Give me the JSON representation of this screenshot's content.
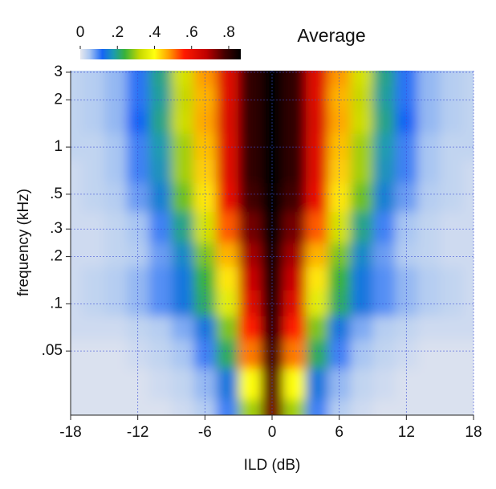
{
  "chart_data": {
    "type": "heatmap",
    "title": "Average",
    "xlabel": "ILD (dB)",
    "ylabel": "frequency (kHz)",
    "x": [
      -18,
      -16,
      -14,
      -12,
      -10,
      -8,
      -6,
      -4,
      -2,
      0,
      2,
      4,
      6,
      8,
      10,
      12,
      14,
      16,
      18
    ],
    "y": [
      0.02,
      0.03,
      0.05,
      0.07,
      0.1,
      0.15,
      0.2,
      0.3,
      0.5,
      0.7,
      1,
      1.5,
      2,
      3
    ],
    "values": [
      [
        0.01,
        0.01,
        0.01,
        0.01,
        0.01,
        0.02,
        0.04,
        0.1,
        0.3,
        0.74,
        0.3,
        0.1,
        0.04,
        0.02,
        0.01,
        0.01,
        0.01,
        0.01,
        0.01
      ],
      [
        0.01,
        0.01,
        0.01,
        0.01,
        0.02,
        0.03,
        0.06,
        0.14,
        0.4,
        0.76,
        0.4,
        0.14,
        0.06,
        0.03,
        0.02,
        0.01,
        0.01,
        0.01,
        0.01
      ],
      [
        0.01,
        0.01,
        0.01,
        0.02,
        0.03,
        0.05,
        0.1,
        0.22,
        0.5,
        0.78,
        0.5,
        0.22,
        0.1,
        0.05,
        0.03,
        0.02,
        0.01,
        0.01,
        0.01
      ],
      [
        0.02,
        0.02,
        0.02,
        0.03,
        0.04,
        0.07,
        0.14,
        0.28,
        0.56,
        0.8,
        0.56,
        0.28,
        0.14,
        0.07,
        0.04,
        0.03,
        0.02,
        0.02,
        0.02
      ],
      [
        0.02,
        0.03,
        0.04,
        0.06,
        0.09,
        0.14,
        0.22,
        0.36,
        0.62,
        0.82,
        0.62,
        0.36,
        0.22,
        0.14,
        0.09,
        0.06,
        0.04,
        0.03,
        0.02
      ],
      [
        0.02,
        0.03,
        0.04,
        0.06,
        0.09,
        0.14,
        0.24,
        0.42,
        0.66,
        0.84,
        0.66,
        0.42,
        0.24,
        0.14,
        0.09,
        0.06,
        0.04,
        0.03,
        0.02
      ],
      [
        0.02,
        0.02,
        0.03,
        0.04,
        0.08,
        0.16,
        0.28,
        0.46,
        0.7,
        0.85,
        0.7,
        0.46,
        0.28,
        0.16,
        0.08,
        0.04,
        0.03,
        0.02,
        0.02
      ],
      [
        0.02,
        0.02,
        0.03,
        0.05,
        0.1,
        0.2,
        0.34,
        0.52,
        0.74,
        0.86,
        0.74,
        0.52,
        0.34,
        0.2,
        0.1,
        0.05,
        0.03,
        0.02,
        0.02
      ],
      [
        0.02,
        0.03,
        0.04,
        0.08,
        0.15,
        0.27,
        0.42,
        0.6,
        0.78,
        0.86,
        0.78,
        0.6,
        0.42,
        0.27,
        0.15,
        0.08,
        0.04,
        0.03,
        0.02
      ],
      [
        0.02,
        0.03,
        0.05,
        0.1,
        0.17,
        0.3,
        0.44,
        0.62,
        0.8,
        0.86,
        0.8,
        0.62,
        0.44,
        0.3,
        0.17,
        0.1,
        0.05,
        0.03,
        0.02
      ],
      [
        0.03,
        0.03,
        0.05,
        0.1,
        0.18,
        0.3,
        0.45,
        0.62,
        0.8,
        0.86,
        0.8,
        0.62,
        0.45,
        0.3,
        0.18,
        0.1,
        0.05,
        0.03,
        0.03
      ],
      [
        0.03,
        0.04,
        0.06,
        0.12,
        0.2,
        0.33,
        0.47,
        0.63,
        0.8,
        0.86,
        0.8,
        0.63,
        0.47,
        0.33,
        0.2,
        0.12,
        0.06,
        0.04,
        0.03
      ],
      [
        0.03,
        0.04,
        0.06,
        0.11,
        0.19,
        0.32,
        0.46,
        0.62,
        0.8,
        0.86,
        0.8,
        0.62,
        0.46,
        0.32,
        0.19,
        0.11,
        0.06,
        0.04,
        0.03
      ],
      [
        0.03,
        0.04,
        0.06,
        0.11,
        0.2,
        0.34,
        0.48,
        0.62,
        0.8,
        0.86,
        0.8,
        0.62,
        0.48,
        0.34,
        0.2,
        0.11,
        0.06,
        0.04,
        0.03
      ]
    ],
    "xlim": [
      -18,
      18
    ],
    "xticks": [
      -18,
      -12,
      -6,
      0,
      6,
      12,
      18
    ],
    "ylim": [
      0.0195,
      3.07
    ],
    "ylog": true,
    "yticks": [
      {
        "value": 0.05,
        "label": ".05"
      },
      {
        "value": 0.1,
        "label": ".1"
      },
      {
        "value": 0.2,
        "label": ".2"
      },
      {
        "value": 0.3,
        "label": ".3"
      },
      {
        "value": 0.5,
        "label": ".5"
      },
      1,
      2,
      3
    ],
    "grid": true,
    "clim": [
      0,
      0.865
    ],
    "cticks": [
      0,
      {
        "value": 0.2,
        "label": ".2"
      },
      {
        "value": 0.4,
        "label": ".4"
      },
      {
        "value": 0.6,
        "label": ".6"
      },
      {
        "value": 0.8,
        "label": ".8"
      }
    ],
    "colormap": [
      [
        0,
        "#e6e8ee"
      ],
      [
        0.05,
        "#a9c6f2"
      ],
      [
        0.12,
        "#1565f5"
      ],
      [
        0.18,
        "#1b9bb0"
      ],
      [
        0.24,
        "#38b23a"
      ],
      [
        0.32,
        "#c6d800"
      ],
      [
        0.4,
        "#ffff10"
      ],
      [
        0.48,
        "#ff9a00"
      ],
      [
        0.56,
        "#ff1a00"
      ],
      [
        0.68,
        "#bf0000"
      ],
      [
        0.78,
        "#420000"
      ],
      [
        0.865,
        "#000000"
      ]
    ]
  }
}
